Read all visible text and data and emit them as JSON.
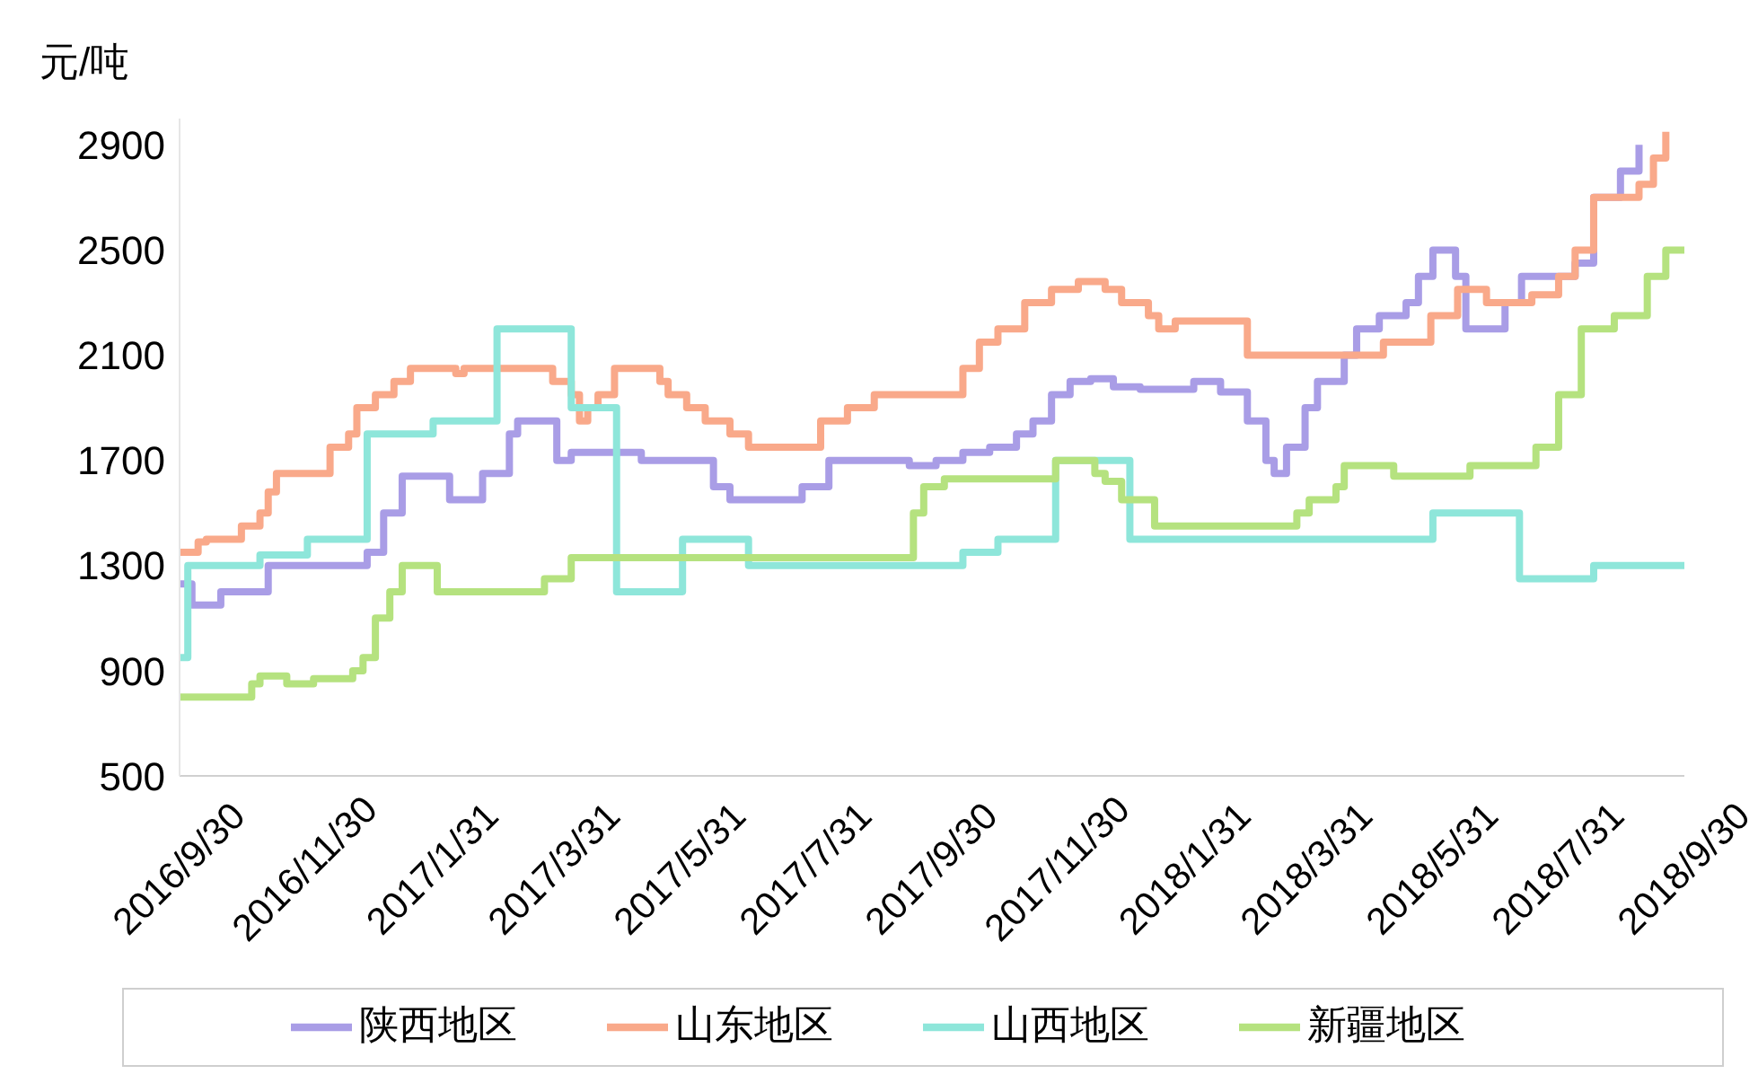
{
  "chart_data": {
    "type": "step",
    "ylabel": "元/吨",
    "xlim": [
      "2016-09-30",
      "2018-09-30"
    ],
    "ylim": [
      500,
      3000
    ],
    "yticks": [
      500,
      900,
      1300,
      1700,
      2100,
      2500,
      2900
    ],
    "xticks": [
      {
        "value": "2016-09-30",
        "label": "2016/9/30"
      },
      {
        "value": "2016-11-30",
        "label": "2016/11/30"
      },
      {
        "value": "2017-01-31",
        "label": "2017/1/31"
      },
      {
        "value": "2017-03-31",
        "label": "2017/3/31"
      },
      {
        "value": "2017-05-31",
        "label": "2017/5/31"
      },
      {
        "value": "2017-07-31",
        "label": "2017/7/31"
      },
      {
        "value": "2017-09-30",
        "label": "2017/9/30"
      },
      {
        "value": "2017-11-30",
        "label": "2017/11/30"
      },
      {
        "value": "2018-01-31",
        "label": "2018/1/31"
      },
      {
        "value": "2018-03-31",
        "label": "2018/3/31"
      },
      {
        "value": "2018-05-31",
        "label": "2018/5/31"
      },
      {
        "value": "2018-07-31",
        "label": "2018/7/31"
      },
      {
        "value": "2018-09-30",
        "label": "2018/9/30"
      }
    ],
    "grid": false,
    "legend": "bottom",
    "line_style": "solid",
    "marker": "none",
    "series": [
      {
        "name": "陕西地区",
        "color": "#a99de6",
        "x": [
          "2016-09-30",
          "2016-10-06",
          "2016-10-20",
          "2016-11-12",
          "2016-12-30",
          "2017-01-07",
          "2017-01-16",
          "2017-02-08",
          "2017-02-24",
          "2017-03-09",
          "2017-03-13",
          "2017-04-01",
          "2017-04-08",
          "2017-05-12",
          "2017-06-16",
          "2017-06-24",
          "2017-07-29",
          "2017-08-11",
          "2017-09-19",
          "2017-10-02",
          "2017-10-15",
          "2017-10-28",
          "2017-11-10",
          "2017-11-18",
          "2017-11-27",
          "2017-12-06",
          "2017-12-16",
          "2017-12-27",
          "2018-01-09",
          "2018-02-04",
          "2018-02-17",
          "2018-03-02",
          "2018-03-11",
          "2018-03-15",
          "2018-03-21",
          "2018-03-30",
          "2018-04-05",
          "2018-04-18",
          "2018-04-24",
          "2018-05-05",
          "2018-05-18",
          "2018-05-24",
          "2018-05-31",
          "2018-06-11",
          "2018-06-16",
          "2018-07-05",
          "2018-07-13",
          "2018-08-08",
          "2018-08-17",
          "2018-08-30",
          "2018-09-08"
        ],
        "values": [
          1230,
          1150,
          1200,
          1300,
          1350,
          1500,
          1640,
          1550,
          1650,
          1800,
          1850,
          1700,
          1730,
          1700,
          1600,
          1550,
          1600,
          1700,
          1680,
          1700,
          1730,
          1750,
          1800,
          1850,
          1950,
          2000,
          2010,
          1980,
          1970,
          2000,
          1960,
          1850,
          1700,
          1650,
          1750,
          1900,
          2000,
          2100,
          2200,
          2250,
          2300,
          2400,
          2500,
          2400,
          2200,
          2300,
          2400,
          2450,
          2700,
          2800,
          2900
        ]
      },
      {
        "name": "山东地区",
        "color": "#f9a98a",
        "x": [
          "2016-09-30",
          "2016-10-09",
          "2016-10-13",
          "2016-10-30",
          "2016-11-08",
          "2016-11-12",
          "2016-11-16",
          "2016-12-12",
          "2016-12-21",
          "2016-12-25",
          "2017-01-03",
          "2017-01-12",
          "2017-01-20",
          "2017-02-11",
          "2017-02-15",
          "2017-03-30",
          "2017-04-08",
          "2017-04-12",
          "2017-04-16",
          "2017-04-21",
          "2017-04-29",
          "2017-05-21",
          "2017-05-25",
          "2017-06-03",
          "2017-06-12",
          "2017-06-24",
          "2017-07-03",
          "2017-08-07",
          "2017-08-20",
          "2017-09-02",
          "2017-10-15",
          "2017-10-23",
          "2017-11-01",
          "2017-11-14",
          "2017-11-27",
          "2017-12-10",
          "2017-12-23",
          "2017-12-31",
          "2018-01-13",
          "2018-01-18",
          "2018-01-26",
          "2018-03-02",
          "2018-05-07",
          "2018-05-30",
          "2018-06-12",
          "2018-06-26",
          "2018-07-18",
          "2018-07-31",
          "2018-08-08",
          "2018-08-17",
          "2018-09-08",
          "2018-09-15",
          "2018-09-21"
        ],
        "values": [
          1350,
          1390,
          1400,
          1450,
          1500,
          1580,
          1650,
          1750,
          1800,
          1900,
          1950,
          2000,
          2050,
          2030,
          2050,
          2000,
          1950,
          1850,
          1900,
          1950,
          2050,
          2000,
          1950,
          1900,
          1850,
          1800,
          1750,
          1850,
          1900,
          1950,
          2050,
          2150,
          2200,
          2300,
          2350,
          2380,
          2350,
          2300,
          2250,
          2200,
          2230,
          2100,
          2150,
          2250,
          2350,
          2300,
          2330,
          2400,
          2500,
          2700,
          2750,
          2850,
          2950
        ]
      },
      {
        "name": "山西地区",
        "color": "#8ee6da",
        "x": [
          "2016-09-30",
          "2016-10-04",
          "2016-11-08",
          "2016-12-01",
          "2016-12-30",
          "2017-01-31",
          "2017-03-03",
          "2017-04-08",
          "2017-04-30",
          "2017-06-01",
          "2017-07-03",
          "2017-10-15",
          "2017-11-01",
          "2017-11-29",
          "2018-01-04",
          "2018-05-31",
          "2018-07-12",
          "2018-08-17",
          "2018-09-30"
        ],
        "values": [
          950,
          1300,
          1340,
          1400,
          1800,
          1850,
          2200,
          1900,
          1200,
          1400,
          1300,
          1350,
          1400,
          1700,
          1400,
          1500,
          1250,
          1300,
          1300
        ]
      },
      {
        "name": "新疆地区",
        "color": "#b5e27f",
        "x": [
          "2016-09-30",
          "2016-11-04",
          "2016-11-08",
          "2016-11-21",
          "2016-12-04",
          "2016-12-23",
          "2016-12-28",
          "2017-01-03",
          "2017-01-10",
          "2017-01-16",
          "2017-02-02",
          "2017-03-26",
          "2017-04-08",
          "2017-09-21",
          "2017-09-26",
          "2017-10-06",
          "2017-11-29",
          "2017-12-18",
          "2017-12-23",
          "2017-12-31",
          "2018-01-16",
          "2018-03-26",
          "2018-04-01",
          "2018-04-14",
          "2018-04-18",
          "2018-05-12",
          "2018-06-18",
          "2018-07-20",
          "2018-07-31",
          "2018-08-11",
          "2018-08-27",
          "2018-09-12",
          "2018-09-21",
          "2018-09-30"
        ],
        "values": [
          800,
          850,
          880,
          850,
          870,
          900,
          950,
          1100,
          1200,
          1300,
          1200,
          1250,
          1330,
          1500,
          1600,
          1630,
          1700,
          1650,
          1620,
          1550,
          1450,
          1500,
          1550,
          1600,
          1680,
          1640,
          1680,
          1750,
          1950,
          2200,
          2250,
          2400,
          2500,
          2500
        ]
      }
    ]
  }
}
